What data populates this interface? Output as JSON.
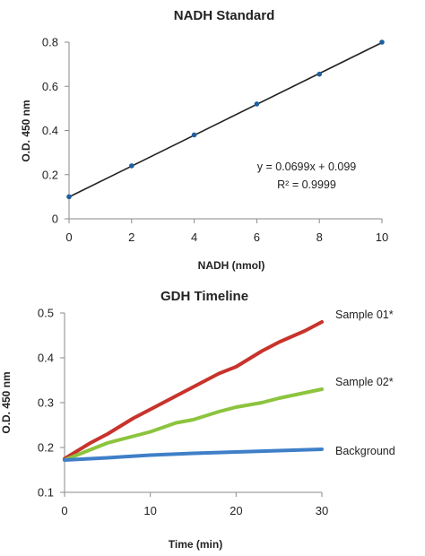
{
  "chart_data": [
    {
      "type": "scatter",
      "title": "NADH Standard",
      "xlabel": "NADH (nmol)",
      "ylabel": "O.D. 450 nm",
      "xlim": [
        0,
        10
      ],
      "ylim": [
        0,
        0.8
      ],
      "x_ticks": [
        "0",
        "2",
        "4",
        "6",
        "8",
        "10"
      ],
      "y_ticks": [
        "0",
        "0.2",
        "0.4",
        "0.6",
        "0.8"
      ],
      "grid": false,
      "series": [
        {
          "x": [
            0,
            2,
            4,
            6,
            8,
            10
          ],
          "y": [
            0.1,
            0.24,
            0.38,
            0.52,
            0.655,
            0.8
          ],
          "color": "#1f5f9e"
        }
      ],
      "trendline": {
        "slope": 0.0699,
        "intercept": 0.099,
        "color": "#222222"
      },
      "annotations": [
        "y = 0.0699x + 0.099",
        "R² = 0.9999"
      ]
    },
    {
      "type": "line",
      "title": "GDH Timeline",
      "xlabel": "Time (min)",
      "ylabel": "O.D. 450 nm",
      "xlim": [
        0,
        30
      ],
      "ylim": [
        0.1,
        0.5
      ],
      "x_ticks": [
        "0",
        "10",
        "20",
        "30"
      ],
      "y_ticks": [
        "0.1",
        "0.2",
        "0.3",
        "0.4",
        "0.5"
      ],
      "grid": false,
      "series": [
        {
          "name": "Sample 01*",
          "color": "#c8332c",
          "x": [
            0,
            3,
            5,
            8,
            10,
            13,
            15,
            18,
            20,
            23,
            25,
            28,
            30
          ],
          "y": [
            0.175,
            0.21,
            0.23,
            0.265,
            0.285,
            0.315,
            0.335,
            0.365,
            0.38,
            0.415,
            0.435,
            0.46,
            0.48
          ]
        },
        {
          "name": "Sample 02*",
          "color": "#8cc43e",
          "x": [
            0,
            3,
            5,
            8,
            10,
            13,
            15,
            18,
            20,
            23,
            25,
            28,
            30
          ],
          "y": [
            0.172,
            0.195,
            0.21,
            0.225,
            0.235,
            0.255,
            0.262,
            0.28,
            0.29,
            0.3,
            0.31,
            0.322,
            0.33
          ]
        },
        {
          "name": "Background",
          "color": "#3f7fc8",
          "x": [
            0,
            5,
            10,
            15,
            20,
            25,
            30
          ],
          "y": [
            0.172,
            0.177,
            0.183,
            0.187,
            0.19,
            0.193,
            0.196
          ]
        }
      ]
    }
  ]
}
